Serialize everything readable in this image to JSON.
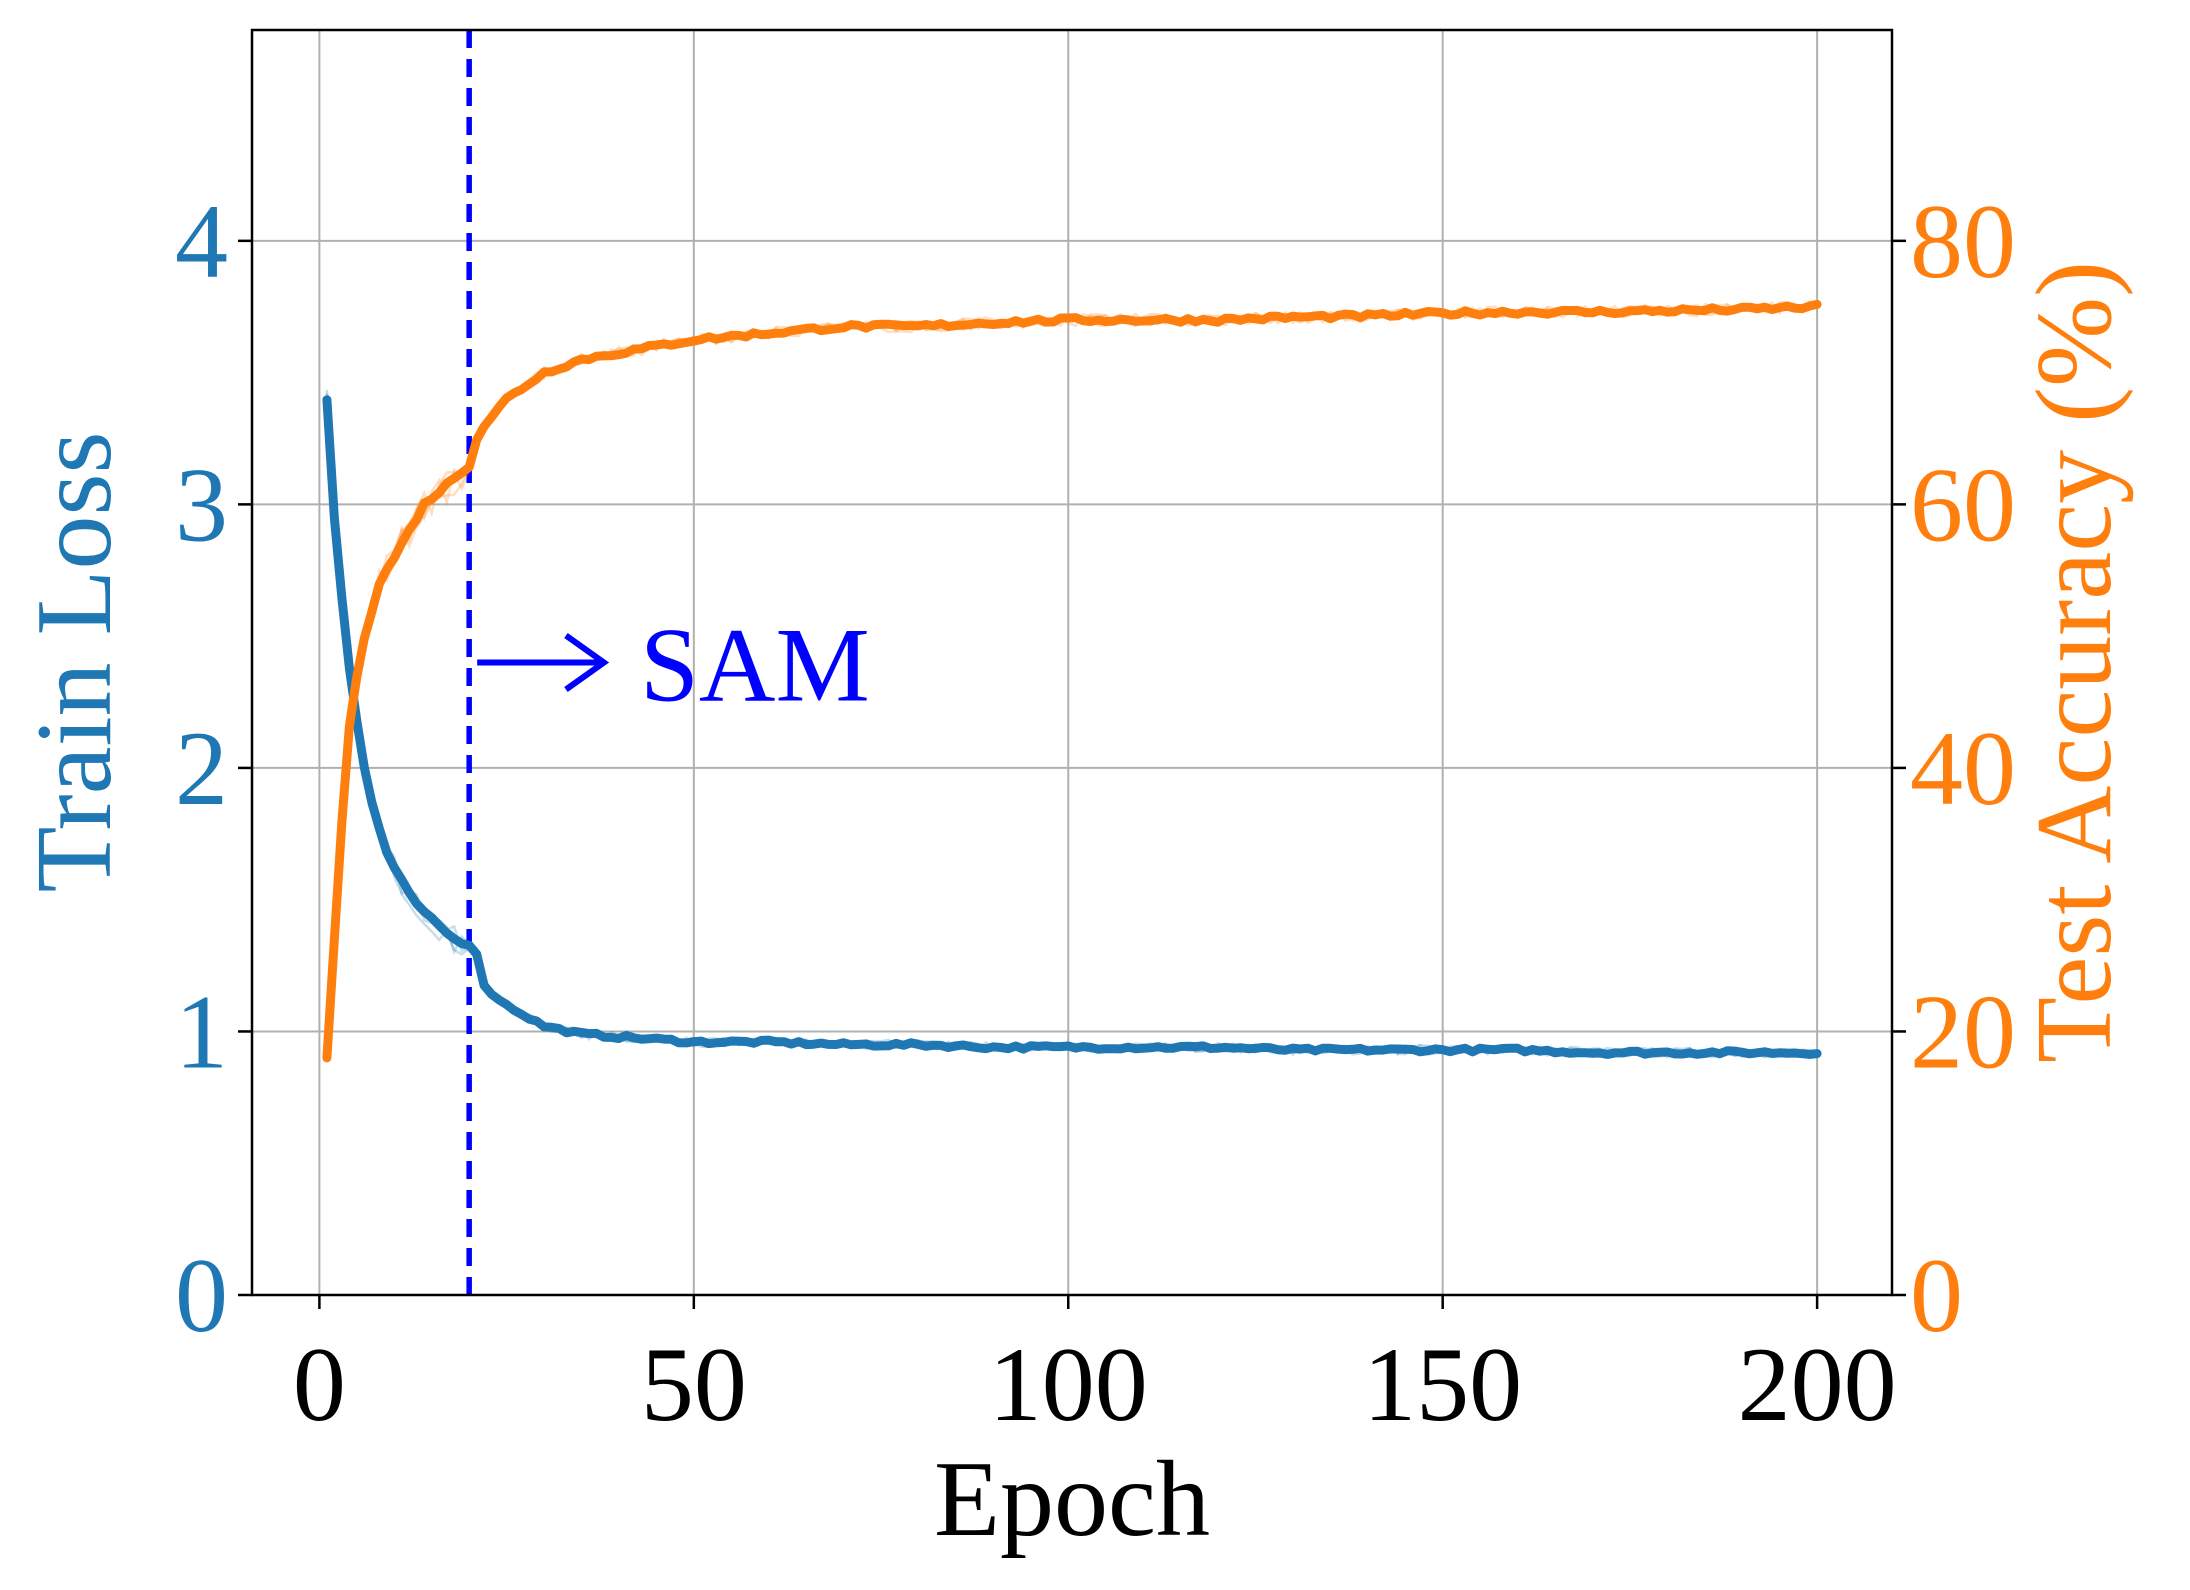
{
  "colors": {
    "loss": "#1f77b4",
    "accuracy": "#ff7f0e",
    "marker": "#0000ff",
    "grid": "#b0b0b0",
    "axis": "#000000"
  },
  "chart_data": {
    "type": "line",
    "xlabel": "Epoch",
    "ylabel_left": "Train Loss",
    "ylabel_right": "Test Accuracy (%)",
    "xlim": [
      -9,
      210
    ],
    "ylim_left": [
      0,
      4.8
    ],
    "ylim_right": [
      0,
      96
    ],
    "x_ticks": [
      0,
      50,
      100,
      150,
      200
    ],
    "y_ticks_left": [
      0,
      1,
      2,
      3,
      4
    ],
    "y_ticks_right": [
      0,
      20,
      40,
      60,
      80
    ],
    "grid": true,
    "series": [
      {
        "name": "Train Loss",
        "axis": "left",
        "color": "#1f77b4",
        "x": [
          1,
          2,
          3,
          4,
          5,
          6,
          7,
          8,
          9,
          10,
          12,
          14,
          16,
          18,
          20,
          21,
          22,
          25,
          30,
          35,
          40,
          50,
          60,
          70,
          80,
          90,
          100,
          110,
          120,
          130,
          140,
          150,
          160,
          170,
          180,
          190,
          200
        ],
        "values": [
          3.4,
          2.95,
          2.65,
          2.38,
          2.18,
          2.0,
          1.87,
          1.77,
          1.68,
          1.62,
          1.52,
          1.45,
          1.4,
          1.35,
          1.33,
          1.3,
          1.17,
          1.1,
          1.02,
          0.99,
          0.98,
          0.96,
          0.96,
          0.95,
          0.95,
          0.94,
          0.94,
          0.94,
          0.94,
          0.93,
          0.93,
          0.93,
          0.93,
          0.92,
          0.92,
          0.92,
          0.92
        ]
      },
      {
        "name": "Test Accuracy (%)",
        "axis": "right",
        "color": "#ff7f0e",
        "x": [
          1,
          2,
          3,
          4,
          5,
          6,
          7,
          8,
          9,
          10,
          12,
          14,
          16,
          18,
          20,
          21,
          22,
          25,
          30,
          35,
          40,
          50,
          60,
          70,
          80,
          90,
          100,
          110,
          120,
          130,
          140,
          150,
          160,
          170,
          180,
          190,
          200
        ],
        "values": [
          18,
          27,
          36,
          43,
          47,
          50,
          52,
          54,
          55,
          56,
          58,
          60,
          61,
          62,
          63,
          65,
          66,
          68,
          70,
          71,
          71.5,
          72.5,
          73,
          73.5,
          73.5,
          73.8,
          74,
          74,
          74,
          74.2,
          74.3,
          74.5,
          74.6,
          74.6,
          74.7,
          74.8,
          75
        ]
      }
    ],
    "annotations": [
      {
        "type": "vline",
        "x": 20,
        "style": "dashed",
        "color": "#0000ff"
      },
      {
        "type": "text-arrow",
        "text": "SAM",
        "x_start": 20,
        "x_end": 38,
        "y_left": 2.4,
        "color": "#0000ff"
      }
    ]
  }
}
